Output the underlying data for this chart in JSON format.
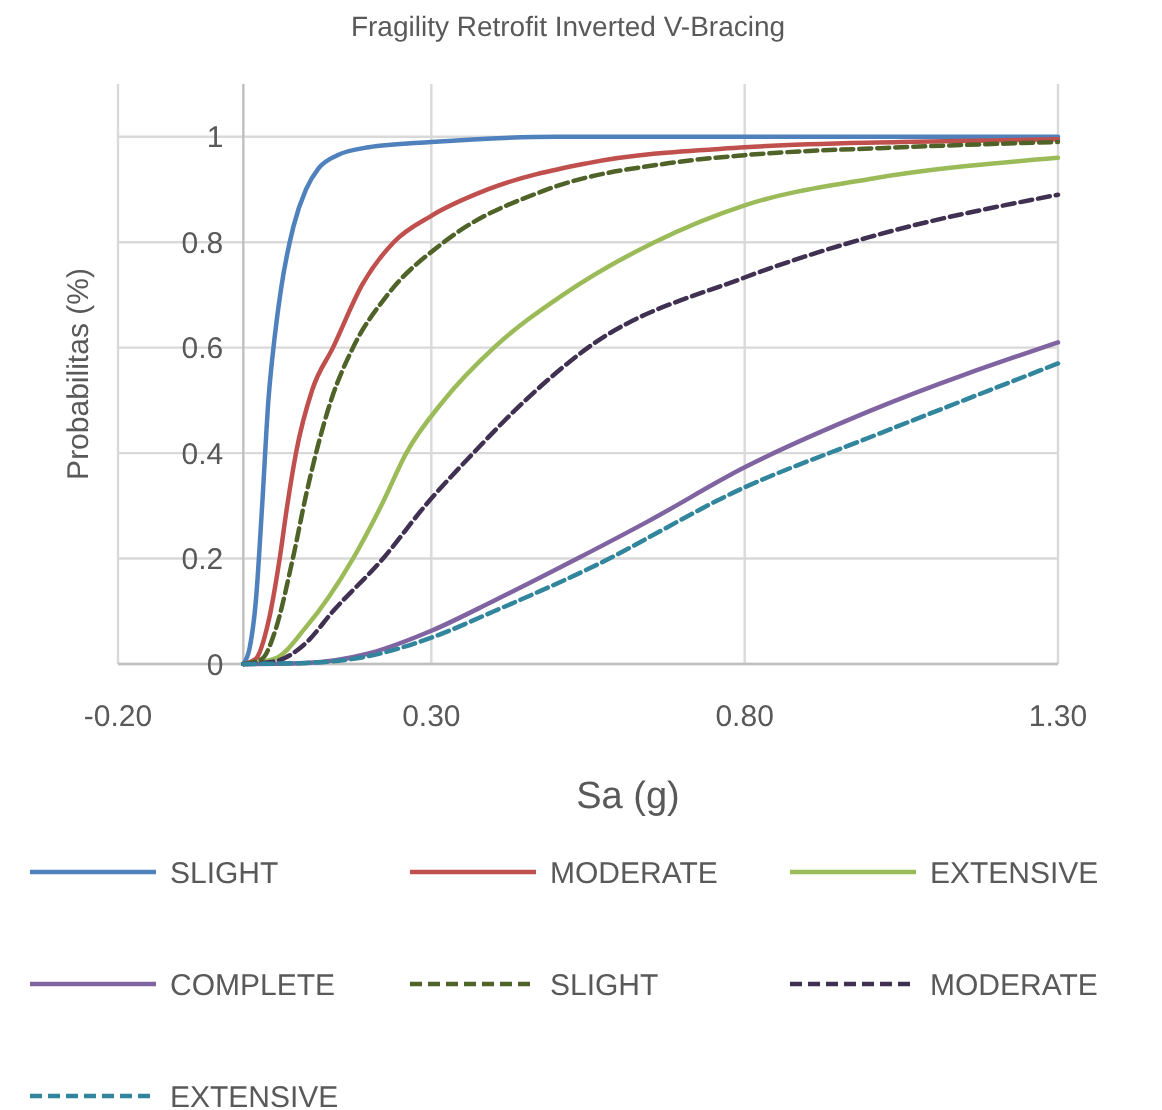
{
  "chart_data": {
    "type": "line",
    "title": "Fragility Retrofit Inverted V-Bracing",
    "xlabel": "Sa (g)",
    "ylabel": "Probabilitas (%)",
    "xlim": [
      -0.2,
      1.3
    ],
    "xticks": [
      {
        "value": -0.2,
        "label": "-0.20"
      },
      {
        "value": 0.3,
        "label": "0.30"
      },
      {
        "value": 0.8,
        "label": "0.80"
      },
      {
        "value": 1.3,
        "label": "1.30"
      }
    ],
    "ylim": [
      0,
      1.1
    ],
    "yticks": [
      0,
      0.2,
      0.4,
      0.6,
      0.8,
      1
    ],
    "grid": true,
    "legend": "bottom",
    "series": [
      {
        "name": "SLIGHT",
        "color": "#4f81bd",
        "line_style": "solid",
        "x": [
          0,
          0.01,
          0.02,
          0.03,
          0.04,
          0.05,
          0.06,
          0.08,
          0.1,
          0.12,
          0.15,
          0.2,
          0.3,
          0.5,
          0.8,
          1.3
        ],
        "values": [
          0,
          0.03,
          0.12,
          0.3,
          0.5,
          0.62,
          0.71,
          0.83,
          0.9,
          0.94,
          0.965,
          0.98,
          0.99,
          1,
          1,
          1
        ]
      },
      {
        "name": "MODERATE",
        "color": "#c0504d",
        "line_style": "solid",
        "x": [
          0,
          0.02,
          0.04,
          0.058,
          0.07,
          0.084,
          0.11,
          0.143,
          0.19,
          0.24,
          0.3,
          0.39,
          0.55,
          0.8,
          1.05,
          1.3
        ],
        "values": [
          0,
          0.01,
          0.08,
          0.2,
          0.3,
          0.4,
          0.52,
          0.6,
          0.72,
          0.8,
          0.85,
          0.9,
          0.95,
          0.98,
          0.99,
          0.995
        ]
      },
      {
        "name": "EXTENSIVE",
        "color": "#9bbb59",
        "line_style": "solid",
        "x": [
          0,
          0.05,
          0.1,
          0.175,
          0.22,
          0.26,
          0.32,
          0.4,
          0.51,
          0.656,
          0.8,
          1.0,
          1.3
        ],
        "values": [
          0,
          0.01,
          0.07,
          0.2,
          0.3,
          0.4,
          0.5,
          0.6,
          0.7,
          0.8,
          0.87,
          0.92,
          0.96
        ]
      },
      {
        "name": "COMPLETE",
        "color": "#8064a2",
        "line_style": "solid",
        "x": [
          0,
          0.1,
          0.2,
          0.3,
          0.4,
          0.533,
          0.645,
          0.8,
          1.0,
          1.3
        ],
        "values": [
          0,
          0.002,
          0.02,
          0.063,
          0.12,
          0.2,
          0.27,
          0.373,
          0.48,
          0.61
        ]
      },
      {
        "name": "SLIGHT",
        "color": "#4f6228",
        "line_style": "dashed",
        "x": [
          0,
          0.03,
          0.05,
          0.079,
          0.1,
          0.116,
          0.14,
          0.175,
          0.23,
          0.32,
          0.485,
          0.68,
          0.8,
          1.05,
          1.3
        ],
        "values": [
          0,
          0.01,
          0.06,
          0.2,
          0.32,
          0.4,
          0.5,
          0.6,
          0.7,
          0.8,
          0.9,
          0.95,
          0.965,
          0.98,
          0.99
        ]
      },
      {
        "name": "MODERATE",
        "color": "#403152",
        "line_style": "dashed",
        "x": [
          0,
          0.05,
          0.1,
          0.143,
          0.223,
          0.29,
          0.367,
          0.45,
          0.55,
          0.8,
          1.0,
          1.3
        ],
        "values": [
          0,
          0.005,
          0.04,
          0.1,
          0.2,
          0.3,
          0.4,
          0.5,
          0.6,
          0.733,
          0.81,
          0.89
        ]
      },
      {
        "name": "EXTENSIVE",
        "color": "#31859c",
        "line_style": "dashed",
        "x": [
          0,
          0.1,
          0.2,
          0.3,
          0.4,
          0.55,
          0.8,
          1.0,
          1.3
        ],
        "values": [
          0,
          0.002,
          0.015,
          0.05,
          0.1,
          0.18,
          0.335,
          0.43,
          0.57
        ]
      }
    ]
  }
}
